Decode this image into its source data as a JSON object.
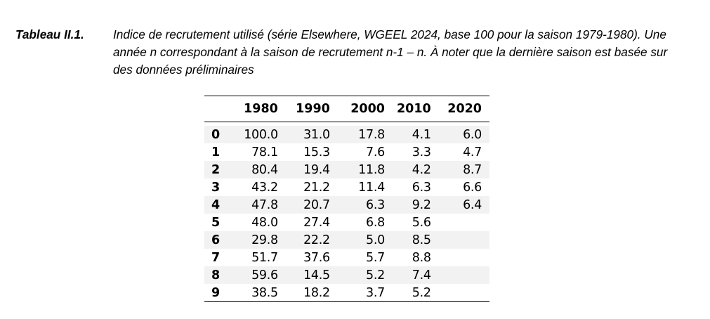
{
  "caption": {
    "label": "Tableau II.1.",
    "text": "Indice de recrutement utilisé (série Elsewhere, WGEEL 2024, base 100 pour la saison 1979-1980). Une année n correspondant à la saison de recrutement n-1 – n. À noter que la dernière saison est basée sur des données préliminaires"
  },
  "table": {
    "columns": [
      "",
      "1980",
      "1990",
      "2000",
      "2010",
      "2020"
    ],
    "rows": [
      [
        "0",
        "100.0",
        "31.0",
        "17.8",
        "4.1",
        "6.0"
      ],
      [
        "1",
        "78.1",
        "15.3",
        "7.6",
        "3.3",
        "4.7"
      ],
      [
        "2",
        "80.4",
        "19.4",
        "11.8",
        "4.2",
        "8.7"
      ],
      [
        "3",
        "43.2",
        "21.2",
        "11.4",
        "6.3",
        "6.6"
      ],
      [
        "4",
        "47.8",
        "20.7",
        "6.3",
        "9.2",
        "6.4"
      ],
      [
        "5",
        "48.0",
        "27.4",
        "6.8",
        "5.6",
        ""
      ],
      [
        "6",
        "29.8",
        "22.2",
        "5.0",
        "8.5",
        ""
      ],
      [
        "7",
        "51.7",
        "37.6",
        "5.7",
        "8.8",
        ""
      ],
      [
        "8",
        "59.6",
        "14.5",
        "5.2",
        "7.4",
        ""
      ],
      [
        "9",
        "38.5",
        "18.2",
        "3.7",
        "5.2",
        ""
      ]
    ]
  }
}
